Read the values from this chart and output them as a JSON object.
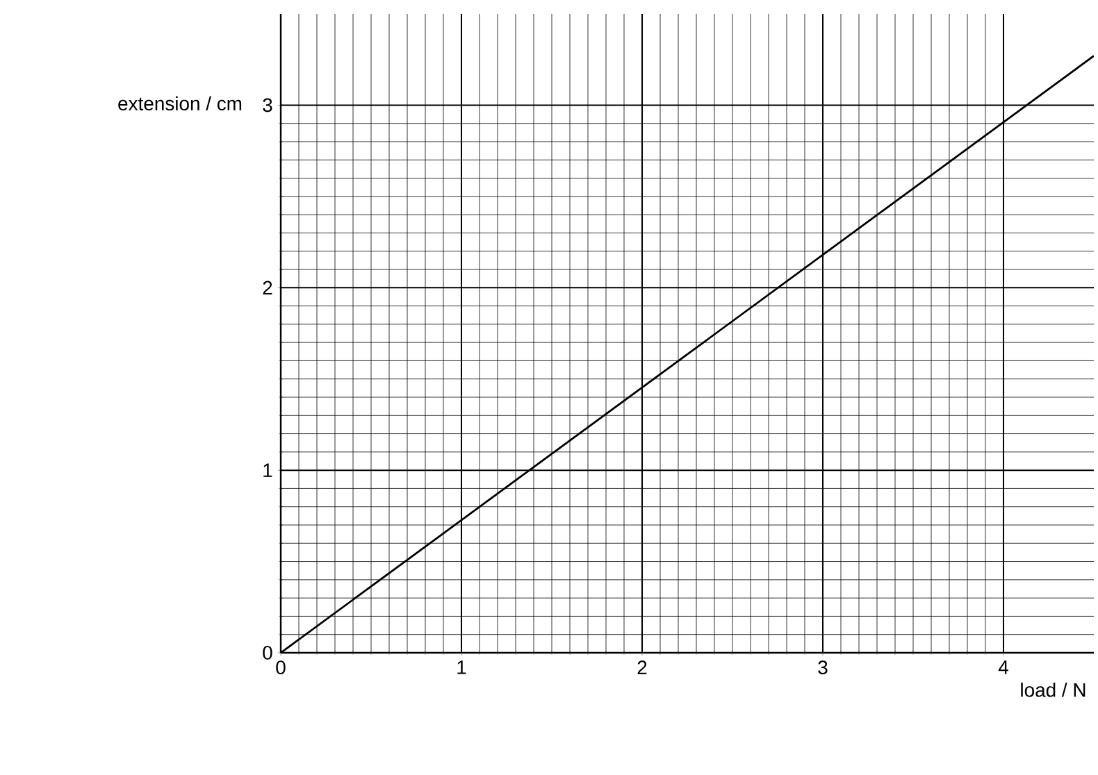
{
  "chart_data": {
    "type": "line",
    "xlabel": "load / N",
    "ylabel": "extension / cm",
    "x": [
      0,
      4.5
    ],
    "series": [
      {
        "color": "#000000",
        "values": [
          0,
          3.27
        ]
      }
    ],
    "xlim": [
      0,
      4.5
    ],
    "ylim": [
      0,
      3.5
    ],
    "xticks": [
      0,
      1,
      2,
      3,
      4
    ],
    "yticks": [
      0,
      1,
      2,
      3
    ],
    "grid": true,
    "line_style": "solid"
  }
}
